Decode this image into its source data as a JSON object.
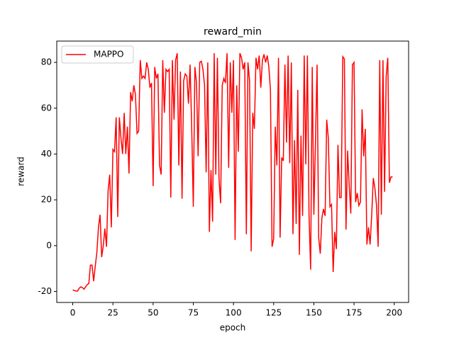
{
  "chart_data": {
    "type": "line",
    "title": "reward_min",
    "x_label": "epoch",
    "y_label": "reward",
    "x": [
      0,
      1,
      2,
      3,
      4,
      5,
      6,
      7,
      8,
      9,
      10,
      11,
      12,
      13,
      14,
      15,
      16,
      17,
      18,
      19,
      20,
      21,
      22,
      23,
      24,
      25,
      26,
      27,
      28,
      29,
      30,
      31,
      32,
      33,
      34,
      35,
      36,
      37,
      38,
      39,
      40,
      41,
      42,
      43,
      44,
      45,
      46,
      47,
      48,
      49,
      50,
      51,
      52,
      53,
      54,
      55,
      56,
      57,
      58,
      59,
      60,
      61,
      62,
      63,
      64,
      65,
      66,
      67,
      68,
      69,
      70,
      71,
      72,
      73,
      74,
      75,
      76,
      77,
      78,
      79,
      80,
      81,
      82,
      83,
      84,
      85,
      86,
      87,
      88,
      89,
      90,
      91,
      92,
      93,
      94,
      95,
      96,
      97,
      98,
      99,
      100,
      101,
      102,
      103,
      104,
      105,
      106,
      107,
      108,
      109,
      110,
      111,
      112,
      113,
      114,
      115,
      116,
      117,
      118,
      119,
      120,
      121,
      122,
      123,
      124,
      125,
      126,
      127,
      128,
      129,
      130,
      131,
      132,
      133,
      134,
      135,
      136,
      137,
      138,
      139,
      140,
      141,
      142,
      143,
      144,
      145,
      146,
      147,
      148,
      149,
      150,
      151,
      152,
      153,
      154,
      155,
      156,
      157,
      158,
      159,
      160,
      161,
      162,
      163,
      164,
      165,
      166,
      167,
      168,
      169,
      170,
      171,
      172,
      173,
      174,
      175,
      176,
      177,
      178,
      179,
      180,
      181,
      182,
      183,
      184,
      185,
      186,
      187,
      188,
      189,
      190,
      191,
      192,
      193,
      194,
      195,
      196,
      197,
      198,
      199
    ],
    "series": [
      {
        "name": "MAPPO",
        "color": "#ff0000",
        "values": [
          -19.3,
          -19.6,
          -19.8,
          -19.8,
          -18.6,
          -18.0,
          -18.3,
          -19.0,
          -18.0,
          -17.0,
          -16.5,
          -8.5,
          -8.5,
          -15.5,
          -9,
          -3,
          8,
          13.5,
          -5,
          0,
          7.5,
          -0.5,
          24,
          31,
          8,
          42,
          41,
          56,
          12.5,
          56,
          47,
          40,
          58,
          40,
          52,
          31.5,
          67,
          63,
          70,
          66,
          49,
          50,
          81,
          73,
          74,
          73,
          80,
          77,
          69,
          71,
          26,
          78,
          73,
          75,
          35,
          31,
          81,
          58,
          77,
          76,
          77,
          21,
          81,
          55,
          81,
          84,
          35,
          76,
          20.5,
          72,
          75,
          74,
          62,
          79,
          52,
          17,
          78,
          71,
          39,
          80,
          80.5,
          77,
          70,
          32,
          80,
          6,
          33,
          10.5,
          84,
          31,
          82,
          29,
          18.5,
          70,
          73,
          71,
          84,
          34,
          80,
          58,
          81,
          2.5,
          70,
          41,
          84,
          82,
          77,
          80,
          5,
          80,
          72,
          -2.5,
          58,
          51,
          82,
          77,
          83,
          69,
          81,
          83.5,
          80,
          83,
          78,
          68,
          -0.5,
          3,
          52,
          35,
          82,
          3.5,
          38.5,
          37,
          79,
          45,
          83,
          36,
          80,
          5,
          46,
          9.5,
          68,
          -4,
          48,
          13,
          83,
          35.5,
          83,
          13.5,
          -10.5,
          78,
          13.5,
          45,
          79,
          3.5,
          -3.5,
          12,
          16,
          13,
          55,
          47,
          17,
          18,
          -11.5,
          6,
          -1.5,
          44,
          21,
          21,
          82.5,
          81.5,
          7,
          41.5,
          26,
          14,
          79,
          80,
          19,
          23,
          17.5,
          19,
          59.5,
          39,
          51,
          0.5,
          8,
          0.5,
          13.5,
          29.5,
          25,
          17.5,
          -0.5,
          81,
          13.5,
          81,
          23.5,
          74,
          82,
          27.5,
          30,
          30
        ]
      }
    ],
    "xlim": [
      -9.95,
      208.95
    ],
    "ylim": [
      -24.8,
      89.3
    ],
    "xticks": [
      0,
      25,
      50,
      75,
      100,
      125,
      150,
      175,
      200
    ],
    "yticks": [
      -20,
      0,
      20,
      40,
      60,
      80
    ],
    "legend": "upper left"
  }
}
